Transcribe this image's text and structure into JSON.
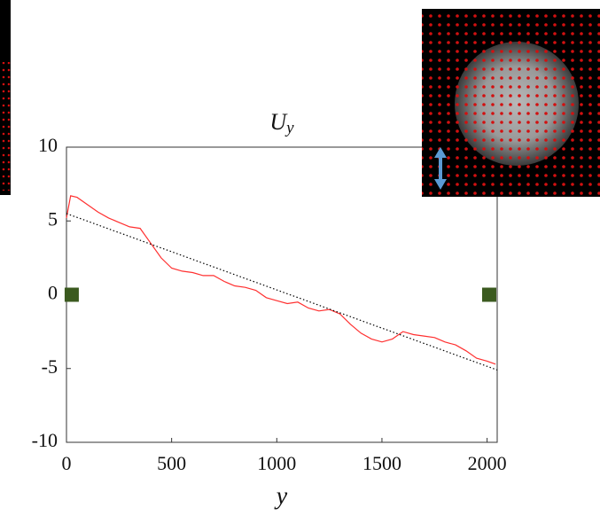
{
  "chart_data": {
    "type": "line",
    "title": "U",
    "title_subscript": "y",
    "xlabel": "y",
    "xlim": [
      0,
      2048
    ],
    "ylim": [
      -10,
      10
    ],
    "xticks": [
      0,
      500,
      1000,
      1500,
      2000
    ],
    "yticks": [
      -10,
      -5,
      0,
      5,
      10
    ],
    "grid": false,
    "series": [
      {
        "style": "solid",
        "color": "#ff3030",
        "x": [
          0,
          20,
          50,
          100,
          150,
          200,
          250,
          300,
          350,
          400,
          450,
          500,
          550,
          600,
          650,
          700,
          750,
          800,
          850,
          900,
          950,
          1000,
          1050,
          1100,
          1150,
          1200,
          1250,
          1300,
          1350,
          1400,
          1450,
          1500,
          1550,
          1600,
          1650,
          1700,
          1750,
          1800,
          1850,
          1900,
          1950,
          2000,
          2040
        ],
        "values": [
          5.2,
          6.7,
          6.6,
          6.1,
          5.6,
          5.2,
          4.9,
          4.6,
          4.5,
          3.5,
          2.5,
          1.8,
          1.6,
          1.5,
          1.3,
          1.3,
          0.9,
          0.6,
          0.5,
          0.3,
          -0.2,
          -0.4,
          -0.6,
          -0.5,
          -0.9,
          -1.1,
          -1.0,
          -1.3,
          -2.0,
          -2.6,
          -3.0,
          -3.2,
          -3.0,
          -2.5,
          -2.7,
          -2.8,
          -2.9,
          -3.2,
          -3.4,
          -3.8,
          -4.3,
          -4.5,
          -4.7
        ]
      },
      {
        "style": "dotted",
        "color": "#000000",
        "x": [
          0,
          2048
        ],
        "values": [
          5.5,
          -5.1
        ]
      },
      {
        "style": "square",
        "color": "#3b5a1f",
        "x": [
          25,
          2010
        ],
        "values": [
          0,
          0
        ]
      }
    ]
  }
}
